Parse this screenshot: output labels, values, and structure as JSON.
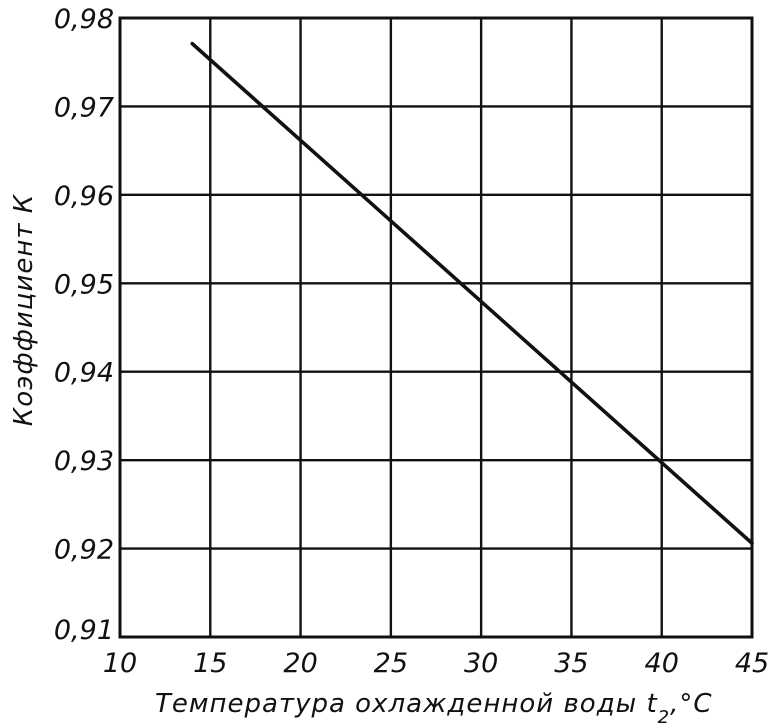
{
  "chart_data": {
    "type": "line",
    "xlabel": "Температура охлажденной воды t",
    "xlabel_sub": "2",
    "xlabel_unit": ",°C",
    "ylabel": "Коэффициент К",
    "xlim": [
      10,
      45
    ],
    "ylim": [
      0.91,
      0.98
    ],
    "grid": true,
    "x_ticks": [
      10,
      15,
      20,
      25,
      30,
      35,
      40,
      45
    ],
    "x_tick_labels": [
      "10",
      "15",
      "20",
      "25",
      "30",
      "35",
      "40",
      "45"
    ],
    "y_ticks": [
      0.91,
      0.92,
      0.93,
      0.94,
      0.95,
      0.96,
      0.97,
      0.98
    ],
    "y_tick_labels": [
      "0,91",
      "0,92",
      "0,93",
      "0,94",
      "0,95",
      "0,96",
      "0,97",
      "0,98"
    ],
    "series": [
      {
        "x": [
          14,
          45
        ],
        "y": [
          0.9771,
          0.9206
        ]
      }
    ]
  }
}
